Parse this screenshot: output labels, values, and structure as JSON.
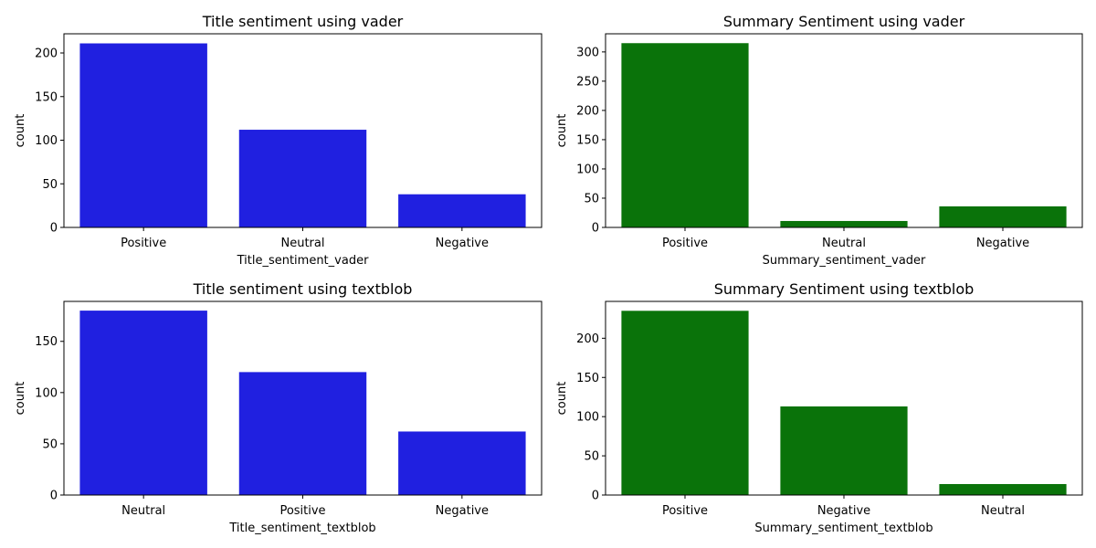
{
  "chart_data": [
    {
      "type": "bar",
      "title": "Title sentiment using vader",
      "xlabel": "Title_sentiment_vader",
      "ylabel": "count",
      "categories": [
        "Positive",
        "Neutral",
        "Negative"
      ],
      "values": [
        211,
        112,
        38
      ],
      "ylim": [
        0,
        222
      ],
      "yticks": [
        0,
        50,
        100,
        150,
        200
      ],
      "color": "#2020e0",
      "grid": false
    },
    {
      "type": "bar",
      "title": "Summary Sentiment using vader",
      "xlabel": "Summary_sentiment_vader",
      "ylabel": "count",
      "categories": [
        "Positive",
        "Neutral",
        "Negative"
      ],
      "values": [
        315,
        11,
        36
      ],
      "ylim": [
        0,
        331
      ],
      "yticks": [
        0,
        50,
        100,
        150,
        200,
        250,
        300
      ],
      "color": "#0a730a",
      "grid": false
    },
    {
      "type": "bar",
      "title": "Title sentiment using textblob",
      "xlabel": "Title_sentiment_textblob",
      "ylabel": "count",
      "categories": [
        "Neutral",
        "Positive",
        "Negative"
      ],
      "values": [
        180,
        120,
        62
      ],
      "ylim": [
        0,
        189
      ],
      "yticks": [
        0,
        50,
        100,
        150
      ],
      "color": "#2020e0",
      "grid": false
    },
    {
      "type": "bar",
      "title": "Summary Sentiment using textblob",
      "xlabel": "Summary_sentiment_textblob",
      "ylabel": "count",
      "categories": [
        "Positive",
        "Negative",
        "Neutral"
      ],
      "values": [
        235,
        113,
        14
      ],
      "ylim": [
        0,
        247
      ],
      "yticks": [
        0,
        50,
        100,
        150,
        200
      ],
      "color": "#0a730a",
      "grid": false
    }
  ]
}
